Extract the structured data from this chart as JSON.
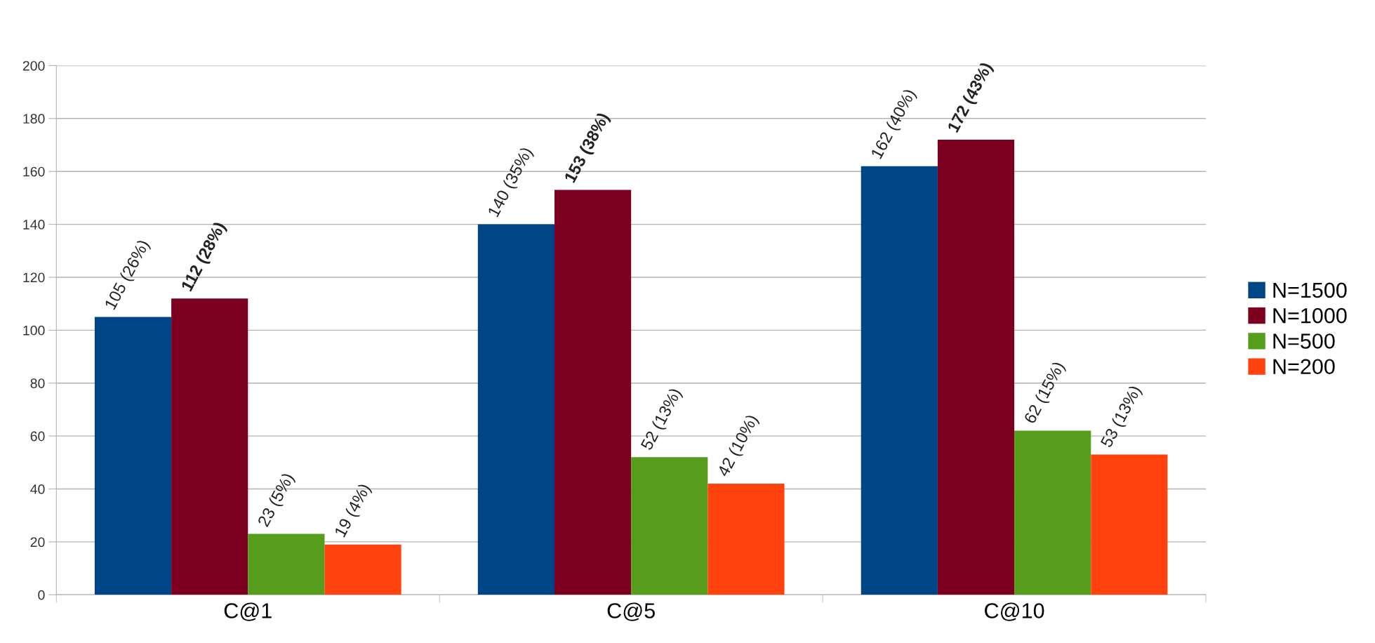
{
  "chart_data": {
    "type": "bar",
    "categories": [
      "C@1",
      "C@5",
      "C@10"
    ],
    "series": [
      {
        "name": "N=1500",
        "color": "#004586",
        "values": [
          105,
          140,
          162
        ],
        "value_labels": [
          "105 (26%)",
          "140 (35%)",
          "162 (40%)"
        ]
      },
      {
        "name": "N=1000",
        "color": "#7e0021",
        "values": [
          112,
          153,
          172
        ],
        "value_labels": [
          "112 (28%)",
          "153 (38%)",
          "172 (43%)"
        ]
      },
      {
        "name": "N=500",
        "color": "#579d1c",
        "values": [
          23,
          52,
          62
        ],
        "value_labels": [
          "23 (5%)",
          "52 (13%)",
          "62 (15%)"
        ]
      },
      {
        "name": "N=200",
        "color": "#ff420e",
        "values": [
          19,
          42,
          53
        ],
        "value_labels": [
          "19 (4%)",
          "42 (10%)",
          "53 (13%)"
        ]
      }
    ],
    "ylim": [
      0,
      200
    ],
    "yticks": [
      0,
      20,
      40,
      60,
      80,
      100,
      120,
      140,
      160,
      180,
      200
    ],
    "grid": "y",
    "legend": "right"
  }
}
